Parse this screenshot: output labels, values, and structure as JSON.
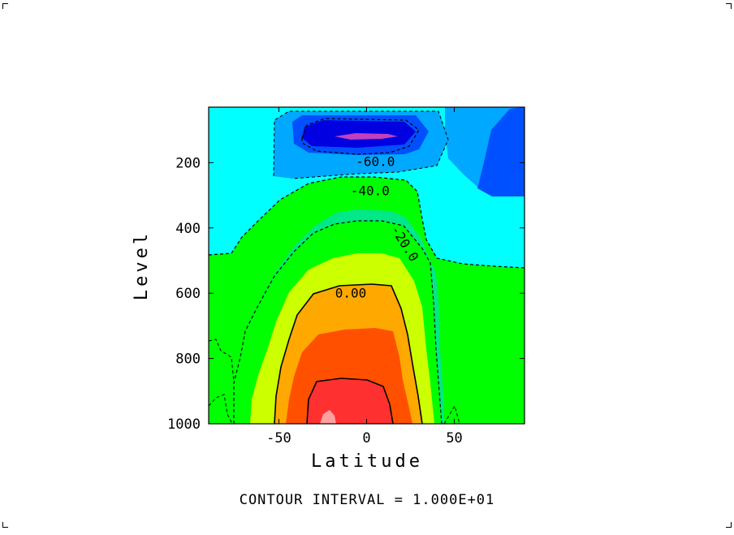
{
  "chart_data": {
    "type": "heatmap",
    "xlabel": "Latitude",
    "ylabel": "Level",
    "footer": "CONTOUR INTERVAL = 1.000E+01",
    "x_range": [
      -90,
      90
    ],
    "y_range": [
      30,
      1000
    ],
    "y_inverted": true,
    "x_ticks": [
      -50,
      0,
      50
    ],
    "x_tick_labels": [
      "-50",
      "0",
      "50"
    ],
    "y_ticks": [
      200,
      400,
      600,
      800,
      1000
    ],
    "y_tick_labels": [
      "200",
      "400",
      "600",
      "800",
      "1000"
    ],
    "contour_interval": 10,
    "contour_levels": [
      -70,
      -60,
      -50,
      -40,
      -30,
      -20,
      -10,
      0,
      10,
      20,
      30,
      40
    ],
    "fill_colors": {
      "background": "#00ff00",
      "-70": "#c040c0",
      "-60": "#0000e0",
      "-50": "#0050ff",
      "-40": "#00a8ff",
      "-30": "#00ffff",
      "-20": "#00e888",
      "-10": "#00ff00",
      "0": "#ccff00",
      "10": "#ffa800",
      "20": "#ff5000",
      "30": "#ff3030",
      "40": "#ffa0a0"
    },
    "contour_labels": [
      {
        "text": "-60.0",
        "lat": 5,
        "level": 195
      },
      {
        "text": "-40.0",
        "lat": 2,
        "level": 285
      },
      {
        "text": "-20.0",
        "lat": 22,
        "level": 447
      },
      {
        "text": "0.00",
        "lat": -9,
        "level": 598
      }
    ]
  }
}
